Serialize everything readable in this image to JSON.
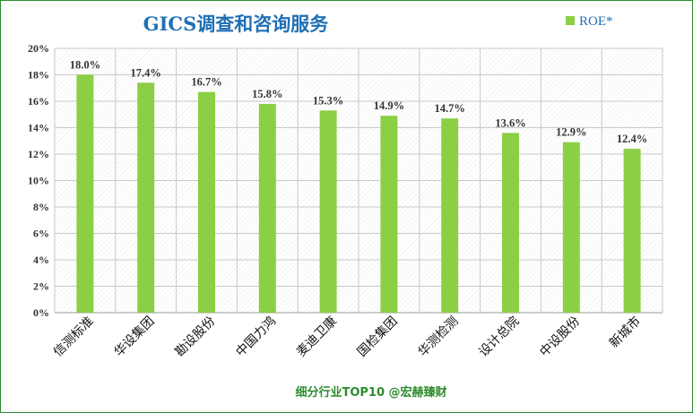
{
  "chart_data": {
    "type": "bar",
    "title": "GICS调查和咨询服务",
    "categories": [
      "信测标准",
      "华设集团",
      "勘设股份",
      "中国力鸿",
      "麦迪卫康",
      "国检集团",
      "华测检测",
      "设计总院",
      "中设股份",
      "新城市"
    ],
    "series": [
      {
        "name": "ROE*",
        "values": [
          18.0,
          17.4,
          16.7,
          15.8,
          15.3,
          14.9,
          14.7,
          13.6,
          12.9,
          12.4
        ],
        "labels": [
          "18.0%",
          "17.4%",
          "16.7%",
          "15.8%",
          "15.3%",
          "14.9%",
          "14.7%",
          "13.6%",
          "12.9%",
          "12.4%"
        ]
      }
    ],
    "ylim": [
      0,
      20
    ],
    "y_ticks": [
      "0%",
      "2%",
      "4%",
      "6%",
      "8%",
      "10%",
      "12%",
      "14%",
      "16%",
      "18%",
      "20%"
    ],
    "grid": true,
    "legend_position": "top-right",
    "xlabel": "",
    "ylabel": "",
    "colors": {
      "bar": "#8ccf45",
      "title": "#1f6fb5",
      "footer": "#2e8b2e"
    }
  },
  "footer": "细分行业TOP10 @宏赫臻财"
}
